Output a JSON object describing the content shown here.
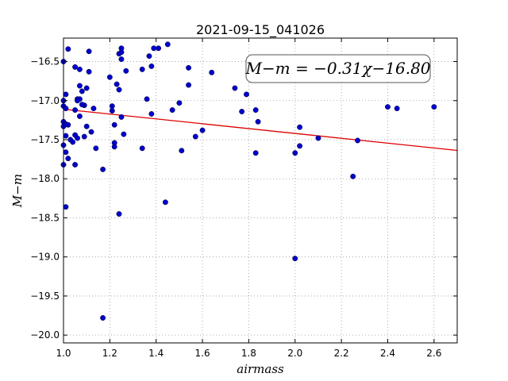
{
  "chart_data": {
    "type": "scatter",
    "title": "2021-09-15_041026",
    "xlabel": "airmass",
    "ylabel": "M−m",
    "xlim": [
      1.0,
      2.7
    ],
    "ylim": [
      -20.1,
      -16.2
    ],
    "y_inverted": true,
    "grid": true,
    "xticks": [
      1.0,
      1.2,
      1.4,
      1.6,
      1.8,
      2.0,
      2.2,
      2.4,
      2.6
    ],
    "xtick_labels": [
      "1.0",
      "1.2",
      "1.4",
      "1.6",
      "1.8",
      "2.0",
      "2.2",
      "2.4",
      "2.6"
    ],
    "yticks": [
      -16.5,
      -17.0,
      -17.5,
      -18.0,
      -18.5,
      -19.0,
      -19.5,
      -20.0
    ],
    "ytick_labels": [
      "−16.5",
      "−17.0",
      "−17.5",
      "−18.0",
      "−18.5",
      "−19.0",
      "−19.5",
      "−20.0"
    ],
    "annotation": "M−m = −0.31χ−16.80",
    "fit_line": {
      "slope": -0.31,
      "intercept": -16.8,
      "color": "#dd0000"
    },
    "marker_color": "#0000cc",
    "points": [
      [
        1.0,
        -16.5
      ],
      [
        1.01,
        -16.92
      ],
      [
        1.0,
        -17.0
      ],
      [
        1.0,
        -17.07
      ],
      [
        1.01,
        -17.1
      ],
      [
        1.0,
        -17.27
      ],
      [
        1.01,
        -17.3
      ],
      [
        1.0,
        -17.33
      ],
      [
        1.02,
        -17.31
      ],
      [
        1.01,
        -17.45
      ],
      [
        1.0,
        -17.57
      ],
      [
        1.01,
        -17.66
      ],
      [
        1.02,
        -17.74
      ],
      [
        1.0,
        -17.82
      ],
      [
        1.01,
        -18.36
      ],
      [
        1.02,
        -16.34
      ],
      [
        1.03,
        -17.5
      ],
      [
        1.04,
        -17.53
      ],
      [
        1.05,
        -16.57
      ],
      [
        1.05,
        -17.12
      ],
      [
        1.05,
        -17.44
      ],
      [
        1.06,
        -16.98
      ],
      [
        1.06,
        -17.48
      ],
      [
        1.07,
        -16.6
      ],
      [
        1.07,
        -16.81
      ],
      [
        1.07,
        -16.98
      ],
      [
        1.07,
        -17.2
      ],
      [
        1.08,
        -16.88
      ],
      [
        1.09,
        -17.06
      ],
      [
        1.09,
        -17.46
      ],
      [
        1.08,
        -17.05
      ],
      [
        1.05,
        -17.82
      ],
      [
        1.1,
        -16.84
      ],
      [
        1.1,
        -17.33
      ],
      [
        1.11,
        -16.37
      ],
      [
        1.11,
        -16.63
      ],
      [
        1.12,
        -17.4
      ],
      [
        1.13,
        -17.1
      ],
      [
        1.14,
        -17.61
      ],
      [
        1.06,
        -17.0
      ],
      [
        1.17,
        -17.88
      ],
      [
        1.17,
        -19.78
      ],
      [
        1.2,
        -16.7
      ],
      [
        1.21,
        -17.07
      ],
      [
        1.21,
        -17.13
      ],
      [
        1.22,
        -17.31
      ],
      [
        1.22,
        -17.54
      ],
      [
        1.22,
        -17.59
      ],
      [
        1.23,
        -16.79
      ],
      [
        1.24,
        -16.86
      ],
      [
        1.24,
        -18.45
      ],
      [
        1.24,
        -16.4
      ],
      [
        1.25,
        -16.38
      ],
      [
        1.25,
        -16.47
      ],
      [
        1.25,
        -16.33
      ],
      [
        1.25,
        -17.21
      ],
      [
        1.26,
        -17.43
      ],
      [
        1.27,
        -16.62
      ],
      [
        1.34,
        -16.6
      ],
      [
        1.34,
        -17.61
      ],
      [
        1.36,
        -16.98
      ],
      [
        1.37,
        -16.43
      ],
      [
        1.38,
        -16.56
      ],
      [
        1.38,
        -17.17
      ],
      [
        1.39,
        -16.33
      ],
      [
        1.41,
        -16.33
      ],
      [
        1.44,
        -18.3
      ],
      [
        1.45,
        -16.28
      ],
      [
        1.47,
        -17.12
      ],
      [
        1.5,
        -17.03
      ],
      [
        1.51,
        -17.64
      ],
      [
        1.54,
        -16.58
      ],
      [
        1.54,
        -16.8
      ],
      [
        1.57,
        -17.46
      ],
      [
        1.6,
        -17.38
      ],
      [
        1.64,
        -16.64
      ],
      [
        1.74,
        -16.84
      ],
      [
        1.77,
        -17.14
      ],
      [
        1.79,
        -16.92
      ],
      [
        1.83,
        -17.12
      ],
      [
        1.83,
        -17.67
      ],
      [
        1.84,
        -17.27
      ],
      [
        2.0,
        -17.67
      ],
      [
        2.0,
        -19.02
      ],
      [
        2.02,
        -17.34
      ],
      [
        2.02,
        -17.58
      ],
      [
        2.1,
        -17.48
      ],
      [
        2.25,
        -17.97
      ],
      [
        2.27,
        -17.51
      ],
      [
        2.4,
        -17.08
      ],
      [
        2.44,
        -17.1
      ],
      [
        2.6,
        -17.08
      ]
    ]
  }
}
